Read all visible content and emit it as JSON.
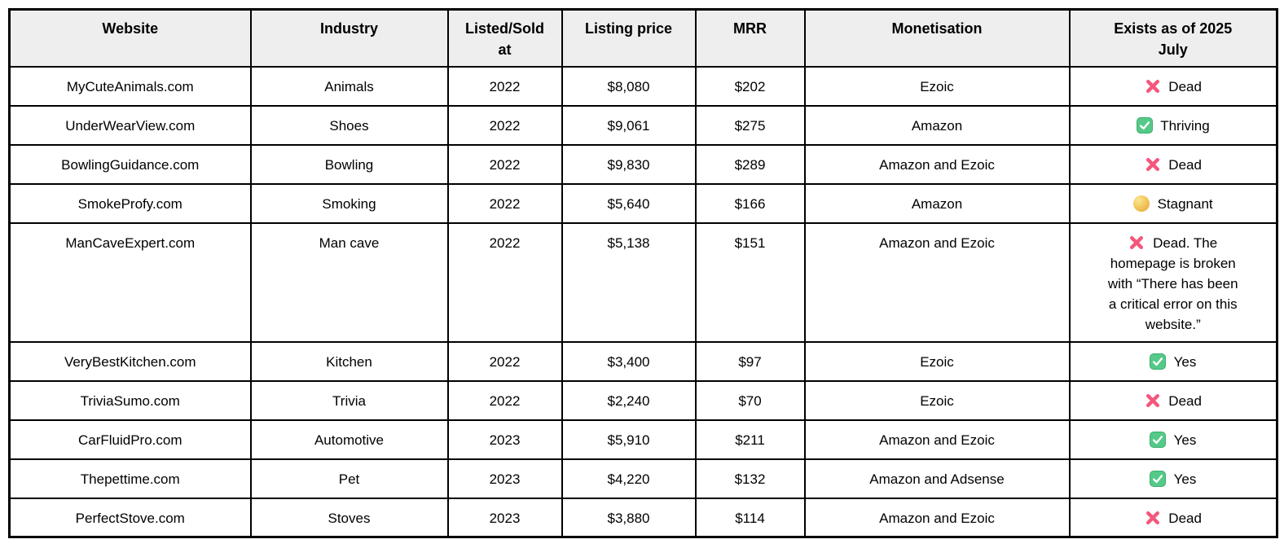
{
  "page": {
    "background": "#ffffff"
  },
  "table": {
    "header_bg": "#eeeeee",
    "border_color": "#000000",
    "status_colors": {
      "cross_pink": "#f4567c",
      "check_green": "#55c988",
      "check_mark_white": "#ffffff",
      "circle_yellow": "#f3c95e"
    },
    "columns": [
      {
        "key": "website",
        "label": "Website"
      },
      {
        "key": "industry",
        "label": "Industry"
      },
      {
        "key": "listed",
        "label": "Listed/Sold\nat"
      },
      {
        "key": "price",
        "label": "Listing price"
      },
      {
        "key": "mrr",
        "label": "MRR"
      },
      {
        "key": "monetisation",
        "label": "Monetisation"
      },
      {
        "key": "status",
        "label": "Exists as of 2025\nJuly"
      }
    ],
    "rows": [
      {
        "website": "MyCuteAnimals.com",
        "industry": "Animals",
        "listed": "2022",
        "price": "$8,080",
        "mrr": "$202",
        "monetisation": "Ezoic",
        "status_icon": "cross",
        "status_text": "Dead"
      },
      {
        "website": "UnderWearView.com",
        "industry": "Shoes",
        "listed": "2022",
        "price": "$9,061",
        "mrr": "$275",
        "monetisation": "Amazon",
        "status_icon": "check",
        "status_text": "Thriving"
      },
      {
        "website": "BowlingGuidance.com",
        "industry": "Bowling",
        "listed": "2022",
        "price": "$9,830",
        "mrr": "$289",
        "monetisation": "Amazon and Ezoic",
        "status_icon": "cross",
        "status_text": "Dead"
      },
      {
        "website": "SmokeProfy.com",
        "industry": "Smoking",
        "listed": "2022",
        "price": "$5,640",
        "mrr": "$166",
        "monetisation": "Amazon",
        "status_icon": "circle",
        "status_text": "Stagnant"
      },
      {
        "website": "ManCaveExpert.com",
        "industry": "Man cave",
        "listed": "2022",
        "price": "$5,138",
        "mrr": "$151",
        "monetisation": "Amazon and Ezoic",
        "status_icon": "cross",
        "status_text": "Dead. The\nhomepage is broken\nwith “There has been\na critical error on this\nwebsite.”"
      },
      {
        "website": "VeryBestKitchen.com",
        "industry": "Kitchen",
        "listed": "2022",
        "price": "$3,400",
        "mrr": "$97",
        "monetisation": "Ezoic",
        "status_icon": "check",
        "status_text": "Yes"
      },
      {
        "website": "TriviaSumo.com",
        "industry": "Trivia",
        "listed": "2022",
        "price": "$2,240",
        "mrr": "$70",
        "monetisation": "Ezoic",
        "status_icon": "cross",
        "status_text": "Dead"
      },
      {
        "website": "CarFluidPro.com",
        "industry": "Automotive",
        "listed": "2023",
        "price": "$5,910",
        "mrr": "$211",
        "monetisation": "Amazon and Ezoic",
        "status_icon": "check",
        "status_text": "Yes"
      },
      {
        "website": "Thepettime.com",
        "industry": "Pet",
        "listed": "2023",
        "price": "$4,220",
        "mrr": "$132",
        "monetisation": "Amazon and Adsense",
        "status_icon": "check",
        "status_text": "Yes"
      },
      {
        "website": "PerfectStove.com",
        "industry": "Stoves",
        "listed": "2023",
        "price": "$3,880",
        "mrr": "$114",
        "monetisation": "Amazon and Ezoic",
        "status_icon": "cross",
        "status_text": "Dead"
      }
    ]
  }
}
